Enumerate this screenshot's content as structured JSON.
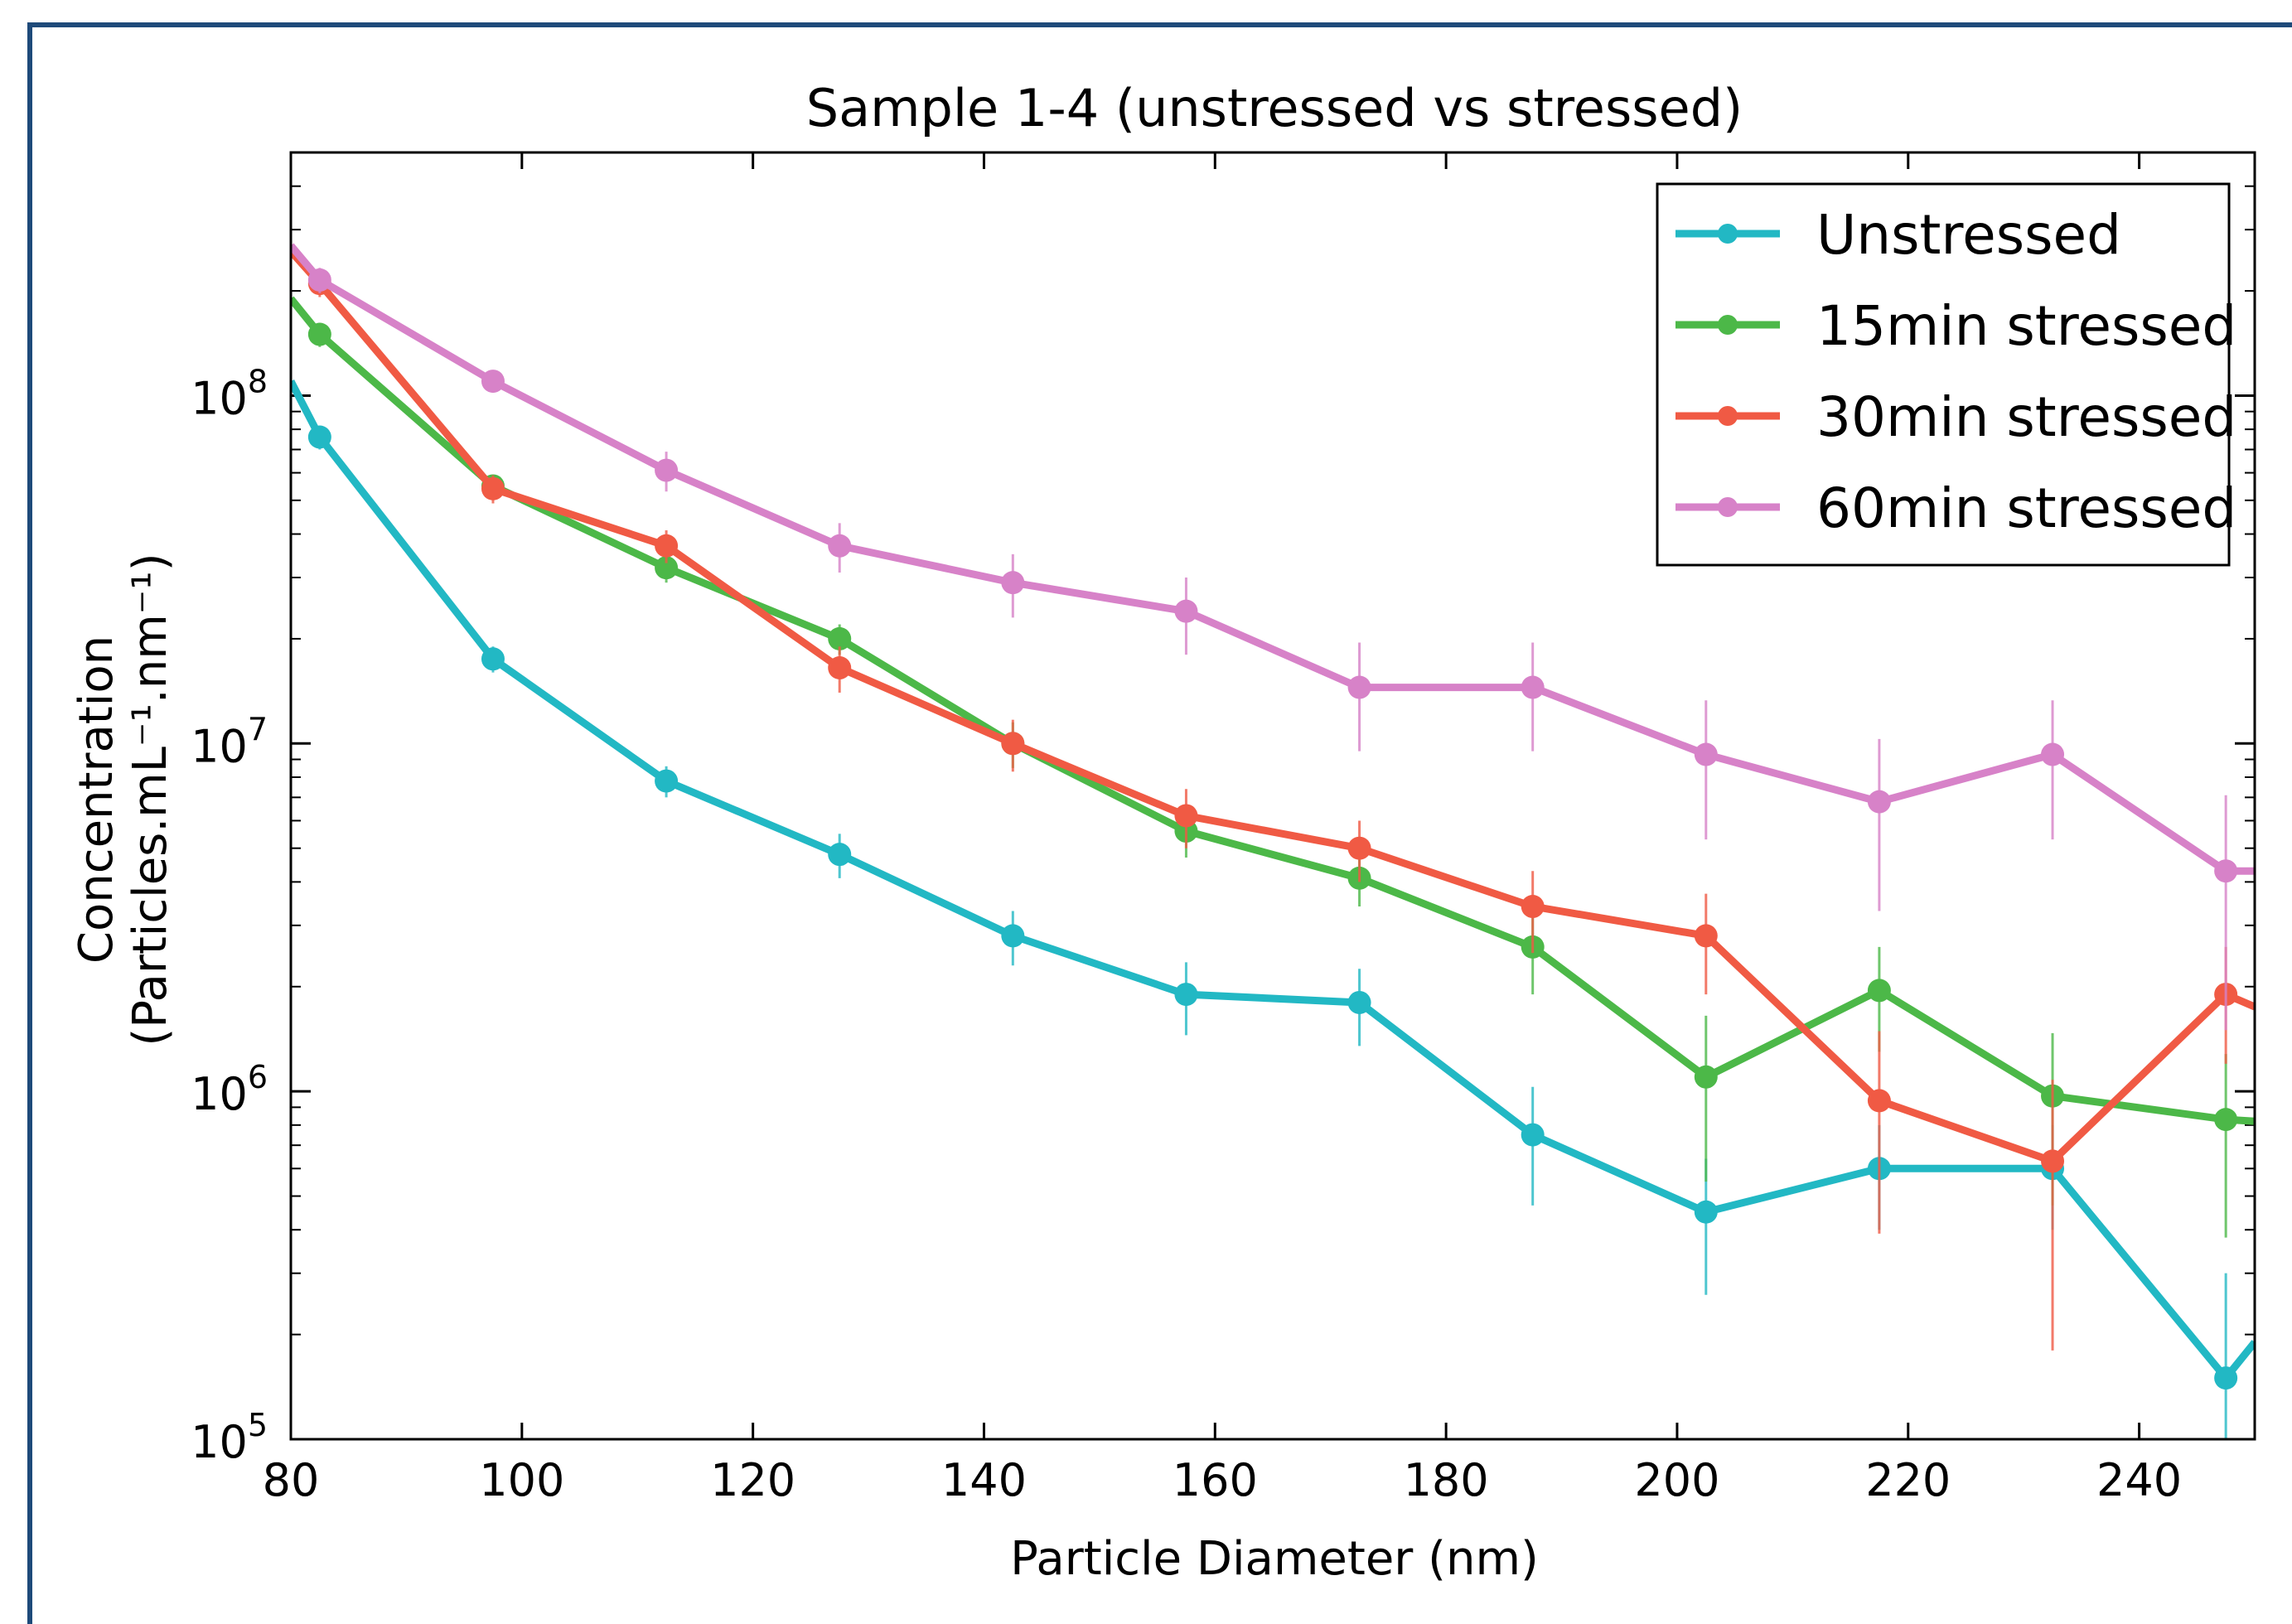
{
  "chart_data": {
    "type": "line",
    "title": "Sample 1-4 (unstressed vs stressed)",
    "xlabel": "Particle Diameter (nm)",
    "ylabel_line1": "Concentration",
    "ylabel_line2": "(Particles.mL⁻¹.nm⁻¹)",
    "xlim": [
      80,
      250
    ],
    "ylim": [
      100000,
      500000000
    ],
    "yscale": "log",
    "grid": false,
    "legend_position": "top-right",
    "x_ticks": [
      {
        "value": 80,
        "label": "80"
      },
      {
        "value": 100,
        "label": "100"
      },
      {
        "value": 120,
        "label": "120"
      },
      {
        "value": 140,
        "label": "140"
      },
      {
        "value": 160,
        "label": "160"
      },
      {
        "value": 180,
        "label": "180"
      },
      {
        "value": 200,
        "label": "200"
      },
      {
        "value": 220,
        "label": "220"
      },
      {
        "value": 240,
        "label": "240"
      }
    ],
    "y_ticks": [
      {
        "value": 100000,
        "base": "10",
        "exp": "5"
      },
      {
        "value": 1000000,
        "base": "10",
        "exp": "6"
      },
      {
        "value": 10000000,
        "base": "10",
        "exp": "7"
      },
      {
        "value": 100000000,
        "base": "10",
        "exp": "8"
      }
    ],
    "series": [
      {
        "name": "Unstressed",
        "color": "#22b8c4",
        "x": [
          80,
          82.5,
          97.5,
          112.5,
          127.5,
          142.5,
          157.5,
          172.5,
          187.5,
          202.5,
          217.5,
          232.5,
          247.5,
          250
        ],
        "y": [
          110000000,
          76000000,
          17500000,
          7800000,
          4800000,
          2800000,
          1900000,
          1800000,
          750000,
          450000,
          600000,
          600000,
          150000,
          190000
        ],
        "err": [
          null,
          6000000,
          1500000,
          800000,
          700000,
          500000,
          450000,
          450000,
          280000,
          190000,
          200000,
          200000,
          150000,
          null
        ],
        "marker_from": 1,
        "marker_to": 12
      },
      {
        "name": "15min stressed",
        "color": "#4cb848",
        "x": [
          80,
          82.5,
          97.5,
          112.5,
          127.5,
          142.5,
          157.5,
          172.5,
          187.5,
          202.5,
          217.5,
          232.5,
          247.5,
          250
        ],
        "y": [
          190000000,
          150000000,
          55000000,
          32000000,
          20000000,
          10000000,
          5600000,
          4100000,
          2600000,
          1100000,
          1950000,
          970000,
          830000,
          820000
        ],
        "err": [
          null,
          12000000,
          4000000,
          3000000,
          2000000,
          1500000,
          900000,
          700000,
          700000,
          550000,
          650000,
          500000,
          450000,
          null
        ],
        "marker_from": 1,
        "marker_to": 12
      },
      {
        "name": "30min stressed",
        "color": "#f05a44",
        "x": [
          80,
          82.5,
          97.5,
          112.5,
          127.5,
          142.5,
          157.5,
          172.5,
          187.5,
          202.5,
          217.5,
          232.5,
          247.5,
          250
        ],
        "y": [
          260000000,
          210000000,
          54000000,
          37000000,
          16500000,
          10000000,
          6200000,
          5000000,
          3400000,
          2800000,
          940000,
          630000,
          1900000,
          1750000
        ],
        "err": [
          null,
          18000000,
          5000000,
          4000000,
          2500000,
          1700000,
          1200000,
          1000000,
          900000,
          900000,
          550000,
          450000,
          700000,
          null
        ],
        "marker_from": 1,
        "marker_to": 12
      },
      {
        "name": "60min stressed",
        "color": "#d782c8",
        "x": [
          80,
          82.5,
          97.5,
          112.5,
          127.5,
          142.5,
          157.5,
          172.5,
          187.5,
          202.5,
          217.5,
          232.5,
          247.5,
          250
        ],
        "y": [
          270000000,
          215000000,
          110000000,
          61000000,
          37000000,
          29000000,
          24000000,
          14500000,
          14500000,
          9300000,
          6800000,
          9300000,
          4300000,
          4300000
        ],
        "err": [
          null,
          18000000,
          8000000,
          8000000,
          6000000,
          6000000,
          6000000,
          5000000,
          5000000,
          4000000,
          3500000,
          4000000,
          2800000,
          null
        ],
        "marker_from": 1,
        "marker_to": 12
      }
    ]
  }
}
